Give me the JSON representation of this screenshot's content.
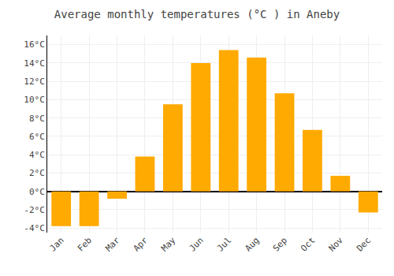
{
  "chart_data": {
    "type": "bar",
    "title": "Average monthly temperatures (°C ) in Aneby",
    "categories": [
      "Jan",
      "Feb",
      "Mar",
      "Apr",
      "May",
      "Jun",
      "Jul",
      "Aug",
      "Sep",
      "Oct",
      "Nov",
      "Dec"
    ],
    "values": [
      -3.8,
      -3.8,
      -0.8,
      3.8,
      9.5,
      14.0,
      15.4,
      14.6,
      10.7,
      6.7,
      1.7,
      -2.3
    ],
    "color": "#FFAA00",
    "ylim": [
      -4.5,
      17.0
    ],
    "yticks": [
      {
        "value": -4,
        "label": "-4°C"
      },
      {
        "value": -2,
        "label": "-2°C"
      },
      {
        "value": 0,
        "label": "0°C"
      },
      {
        "value": 2,
        "label": "2°C"
      },
      {
        "value": 4,
        "label": "4°C"
      },
      {
        "value": 6,
        "label": "6°C"
      },
      {
        "value": 8,
        "label": "8°C"
      },
      {
        "value": 10,
        "label": "10°C"
      },
      {
        "value": 12,
        "label": "12°C"
      },
      {
        "value": 14,
        "label": "14°C"
      },
      {
        "value": 16,
        "label": "16°C"
      }
    ],
    "grid": true
  }
}
